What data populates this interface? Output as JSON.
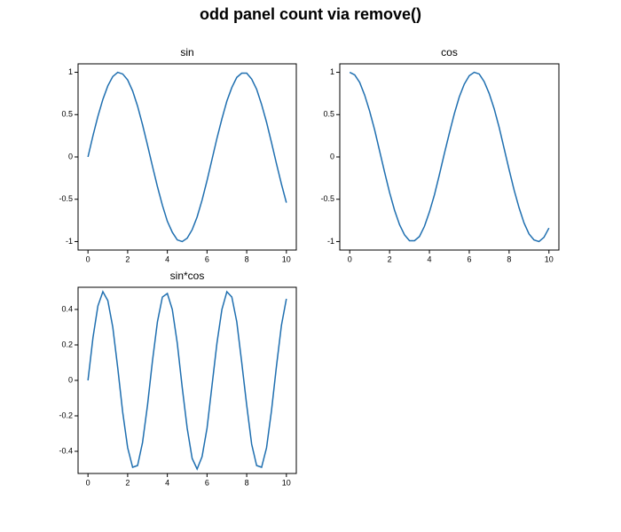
{
  "title": "odd panel count via remove()",
  "chart_data": [
    {
      "type": "line",
      "title": "sin",
      "x": [
        0,
        0.25,
        0.5,
        0.75,
        1,
        1.25,
        1.5,
        1.75,
        2,
        2.25,
        2.5,
        2.75,
        3,
        3.25,
        3.5,
        3.75,
        4,
        4.25,
        4.5,
        4.75,
        5,
        5.25,
        5.5,
        5.75,
        6,
        6.25,
        6.5,
        6.75,
        7,
        7.25,
        7.5,
        7.75,
        8,
        8.25,
        8.5,
        8.75,
        9,
        9.25,
        9.5,
        9.75,
        10
      ],
      "series": [
        {
          "color": "#1f6fb0",
          "values": [
            0,
            0.25,
            0.48,
            0.68,
            0.84,
            0.95,
            1.0,
            0.98,
            0.91,
            0.78,
            0.6,
            0.38,
            0.14,
            -0.11,
            -0.35,
            -0.57,
            -0.76,
            -0.89,
            -0.98,
            -1.0,
            -0.96,
            -0.86,
            -0.71,
            -0.51,
            -0.28,
            -0.03,
            0.22,
            0.45,
            0.66,
            0.82,
            0.94,
            0.99,
            0.99,
            0.92,
            0.8,
            0.62,
            0.41,
            0.17,
            -0.08,
            -0.32,
            -0.54
          ]
        }
      ],
      "xlim": [
        -0.5,
        10.5
      ],
      "xticks": [
        0,
        2,
        4,
        6,
        8,
        10
      ],
      "ylim": [
        -1.1,
        1.1
      ],
      "yticks": [
        -1,
        -0.5,
        0,
        0.5,
        1
      ]
    },
    {
      "type": "line",
      "title": "cos",
      "x": [
        0,
        0.25,
        0.5,
        0.75,
        1,
        1.25,
        1.5,
        1.75,
        2,
        2.25,
        2.5,
        2.75,
        3,
        3.25,
        3.5,
        3.75,
        4,
        4.25,
        4.5,
        4.75,
        5,
        5.25,
        5.5,
        5.75,
        6,
        6.25,
        6.5,
        6.75,
        7,
        7.25,
        7.5,
        7.75,
        8,
        8.25,
        8.5,
        8.75,
        9,
        9.25,
        9.5,
        9.75,
        10
      ],
      "series": [
        {
          "color": "#1f6fb0",
          "values": [
            1,
            0.97,
            0.88,
            0.73,
            0.54,
            0.32,
            0.07,
            -0.18,
            -0.42,
            -0.63,
            -0.8,
            -0.92,
            -0.99,
            -0.99,
            -0.94,
            -0.82,
            -0.65,
            -0.45,
            -0.21,
            0.04,
            0.28,
            0.51,
            0.71,
            0.86,
            0.96,
            1.0,
            0.98,
            0.89,
            0.75,
            0.57,
            0.35,
            0.1,
            -0.15,
            -0.39,
            -0.6,
            -0.78,
            -0.91,
            -0.98,
            -1.0,
            -0.95,
            -0.84
          ]
        }
      ],
      "xlim": [
        -0.5,
        10.5
      ],
      "xticks": [
        0,
        2,
        4,
        6,
        8,
        10
      ],
      "ylim": [
        -1.1,
        1.1
      ],
      "yticks": [
        -1,
        -0.5,
        0,
        0.5,
        1
      ]
    },
    {
      "type": "line",
      "title": "sin*cos",
      "x": [
        0,
        0.25,
        0.5,
        0.75,
        1,
        1.25,
        1.5,
        1.75,
        2,
        2.25,
        2.5,
        2.75,
        3,
        3.25,
        3.5,
        3.75,
        4,
        4.25,
        4.5,
        4.75,
        5,
        5.25,
        5.5,
        5.75,
        6,
        6.25,
        6.5,
        6.75,
        7,
        7.25,
        7.5,
        7.75,
        8,
        8.25,
        8.5,
        8.75,
        9,
        9.25,
        9.5,
        9.75,
        10
      ],
      "series": [
        {
          "color": "#1f6fb0",
          "values": [
            0,
            0.24,
            0.42,
            0.5,
            0.45,
            0.3,
            0.07,
            -0.18,
            -0.38,
            -0.49,
            -0.48,
            -0.35,
            -0.14,
            0.11,
            0.33,
            0.47,
            0.49,
            0.4,
            0.21,
            -0.04,
            -0.27,
            -0.44,
            -0.5,
            -0.43,
            -0.27,
            -0.03,
            0.21,
            0.4,
            0.5,
            0.47,
            0.33,
            0.1,
            -0.14,
            -0.36,
            -0.48,
            -0.49,
            -0.38,
            -0.17,
            0.08,
            0.31,
            0.46
          ]
        }
      ],
      "xlim": [
        -0.5,
        10.5
      ],
      "xticks": [
        0,
        2,
        4,
        6,
        8,
        10
      ],
      "ylim": [
        -0.525,
        0.525
      ],
      "yticks": [
        -0.4,
        -0.2,
        0,
        0.2,
        0.4
      ]
    }
  ]
}
